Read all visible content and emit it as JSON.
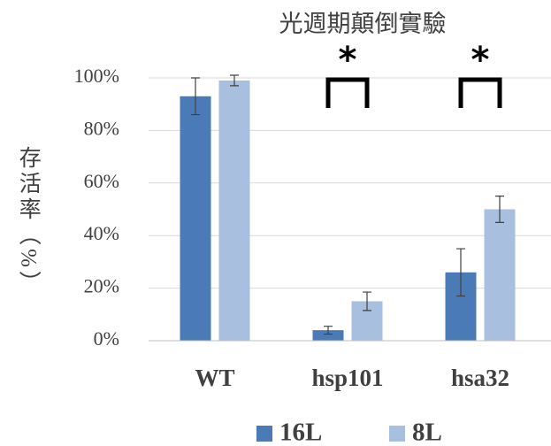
{
  "chart_data": {
    "type": "bar",
    "title": "光週期顛倒實驗",
    "y_label": "存活率（%）",
    "categories": [
      "WT",
      "hsp101",
      "hsa32"
    ],
    "series": [
      {
        "name": "16L",
        "color": "#4a7bb7",
        "values": [
          93,
          4,
          26
        ],
        "errors": [
          7,
          1.5,
          9
        ]
      },
      {
        "name": "8L",
        "color": "#a9bfe0",
        "values": [
          99,
          15,
          50
        ],
        "errors": [
          2,
          3.5,
          5
        ]
      }
    ],
    "ylim": [
      0,
      100
    ],
    "yticks": [
      {
        "value": 0,
        "label": "0%"
      },
      {
        "value": 20,
        "label": "20%"
      },
      {
        "value": 40,
        "label": "40%"
      },
      {
        "value": 60,
        "label": "60%"
      },
      {
        "value": 80,
        "label": "80%"
      },
      {
        "value": 100,
        "label": "100%"
      }
    ],
    "grid": true,
    "annotations": [
      {
        "text": "*",
        "category": 1
      },
      {
        "text": "*",
        "category": 2
      }
    ]
  }
}
